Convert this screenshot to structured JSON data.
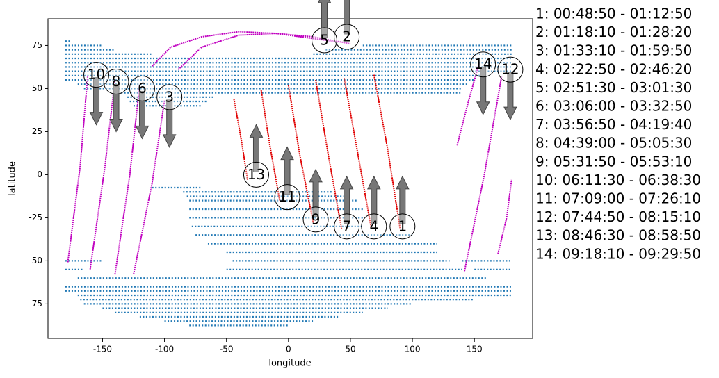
{
  "chart_data": {
    "type": "scatter",
    "xlabel": "longitude",
    "ylabel": "latitude",
    "xlim": [
      -194,
      197
    ],
    "ylim": [
      -95,
      90.5
    ],
    "xticks": [
      -150,
      -100,
      -50,
      0,
      50,
      100,
      150
    ],
    "yticks": [
      -75,
      -50,
      -25,
      0,
      25,
      50,
      75
    ],
    "land_color": "#1f77b4",
    "land_rows": [
      [
        77.5,
        -180,
        -175
      ],
      [
        75,
        -180,
        -150
      ],
      [
        75,
        60,
        180
      ],
      [
        72.5,
        -180,
        -140
      ],
      [
        72.5,
        30,
        180
      ],
      [
        70,
        -180,
        -110
      ],
      [
        70,
        20,
        180
      ],
      [
        67.5,
        -180,
        180
      ],
      [
        65,
        -180,
        180
      ],
      [
        62.5,
        -180,
        180
      ],
      [
        60,
        -180,
        180
      ],
      [
        57.5,
        -180,
        160
      ],
      [
        55,
        -180,
        150
      ],
      [
        52.5,
        -170,
        145
      ],
      [
        50,
        -165,
        140
      ],
      [
        47.5,
        -135,
        140
      ],
      [
        45,
        -130,
        -60
      ],
      [
        42.5,
        -128,
        -65
      ],
      [
        40,
        -125,
        -70
      ],
      [
        -7.5,
        -110,
        -70
      ],
      [
        -10,
        -85,
        35
      ],
      [
        -12.5,
        -82,
        45
      ],
      [
        -15,
        -80,
        55
      ],
      [
        -20,
        -80,
        60
      ],
      [
        -25,
        -80,
        60
      ],
      [
        -30,
        -78,
        60
      ],
      [
        -35,
        -75,
        100
      ],
      [
        -40,
        -65,
        120
      ],
      [
        -45,
        -50,
        120
      ],
      [
        -50,
        -180,
        -150
      ],
      [
        -50,
        -45,
        130
      ],
      [
        -50,
        140,
        180
      ],
      [
        -55,
        -180,
        -165
      ],
      [
        -55,
        -50,
        140
      ],
      [
        -55,
        150,
        180
      ],
      [
        -60,
        -170,
        160
      ],
      [
        -65,
        -180,
        180
      ],
      [
        -67.5,
        -180,
        180
      ],
      [
        -70,
        -170,
        180
      ],
      [
        -72.5,
        -168,
        150
      ],
      [
        -75,
        -165,
        100
      ],
      [
        -77.5,
        -150,
        80
      ],
      [
        -80,
        -140,
        60
      ],
      [
        -82.5,
        -120,
        40
      ],
      [
        -85,
        -100,
        20
      ],
      [
        -87.5,
        -80,
        0
      ]
    ],
    "tracks": [
      {
        "label": "1",
        "color": "#e00000",
        "lon": [
          69,
          80,
          90
        ],
        "lat": [
          58,
          15,
          -31
        ],
        "label_lon": 92,
        "label_lat": -30,
        "direction": "up"
      },
      {
        "label": "2",
        "color": "#c000c0",
        "lon": [
          -89,
          -70,
          -40,
          -10,
          20,
          50
        ],
        "lat": [
          61,
          74,
          81,
          82,
          80,
          76
        ],
        "label_lon": 47,
        "label_lat": 80,
        "direction": "up"
      },
      {
        "label": "3",
        "color": "#c000c0",
        "lon": [
          -100,
          -110,
          -125
        ],
        "lat": [
          43,
          -5,
          -58
        ],
        "label_lon": -96,
        "label_lat": 45,
        "direction": "down"
      },
      {
        "label": "4",
        "color": "#e00000",
        "lon": [
          45,
          56,
          67
        ],
        "lat": [
          56,
          12,
          -32
        ],
        "label_lon": 69,
        "label_lat": -30,
        "direction": "up"
      },
      {
        "label": "5",
        "color": "#c000c0",
        "lon": [
          -110,
          -95,
          -70,
          -40,
          -10,
          20,
          40
        ],
        "lat": [
          63,
          74,
          80,
          83,
          82,
          79,
          77
        ],
        "label_lon": 29,
        "label_lat": 78,
        "direction": "up"
      },
      {
        "label": "6",
        "color": "#c000c0",
        "lon": [
          -120,
          -128,
          -140
        ],
        "lat": [
          52,
          0,
          -58
        ],
        "label_lon": -118,
        "label_lat": 50,
        "direction": "down"
      },
      {
        "label": "7",
        "color": "#e00000",
        "lon": [
          22,
          32,
          43
        ],
        "lat": [
          55,
          12,
          -32
        ],
        "label_lon": 47,
        "label_lat": -30,
        "direction": "up"
      },
      {
        "label": "8",
        "color": "#c000c0",
        "lon": [
          -140,
          -148,
          -160
        ],
        "lat": [
          55,
          5,
          -55
        ],
        "label_lon": -139,
        "label_lat": 54,
        "direction": "down"
      },
      {
        "label": "9",
        "color": "#e00000",
        "lon": [
          0,
          9,
          20
        ],
        "lat": [
          52,
          12,
          -28
        ],
        "label_lon": 22,
        "label_lat": -26,
        "direction": "up"
      },
      {
        "label": "10",
        "color": "#c000c0",
        "lon": [
          -162,
          -168,
          -178
        ],
        "lat": [
          57,
          5,
          -51
        ],
        "label_lon": -155,
        "label_lat": 58,
        "direction": "down"
      },
      {
        "label": "11",
        "color": "#e00000",
        "lon": [
          -22,
          -15,
          -7
        ],
        "lat": [
          49,
          17,
          -15
        ],
        "label_lon": -1,
        "label_lat": -13,
        "direction": "up"
      },
      {
        "label": "12",
        "color": "#c000c0",
        "lon": [
          142,
          158,
          172,
          null,
          169,
          176,
          180
        ],
        "lat": [
          -56,
          0,
          57,
          null,
          -46,
          -25,
          -3
        ],
        "label_lon": 179,
        "label_lat": 61,
        "direction": "down"
      },
      {
        "label": "13",
        "color": "#e00000",
        "lon": [
          -44,
          -38,
          -33
        ],
        "lat": [
          44,
          20,
          -3
        ],
        "label_lon": -26,
        "label_lat": 0,
        "direction": "up"
      },
      {
        "label": "14",
        "color": "#c000c0",
        "lon": [
          136,
          145,
          154
        ],
        "lat": [
          17,
          42,
          65
        ],
        "label_lon": 157,
        "label_lat": 64,
        "direction": "down"
      }
    ],
    "legend": [
      "1:  00:48:50 - 01:12:50",
      "2:  01:18:10 - 01:28:20",
      "3:  01:33:10 - 01:59:50",
      "4:  02:22:50 - 02:46:20",
      "5:  02:51:30 - 03:01:30",
      "6:  03:06:00 - 03:32:50",
      "7:  03:56:50 - 04:19:40",
      "8:  04:39:00 - 05:05:30",
      "9:  05:31:50 - 05:53:10",
      "10:  06:11:30 - 06:38:30",
      "11:  07:09:00 - 07:26:10",
      "12:  07:44:50 - 08:15:10",
      "13:  08:46:30 - 08:58:50",
      "14:  09:18:10 - 09:29:50"
    ]
  }
}
